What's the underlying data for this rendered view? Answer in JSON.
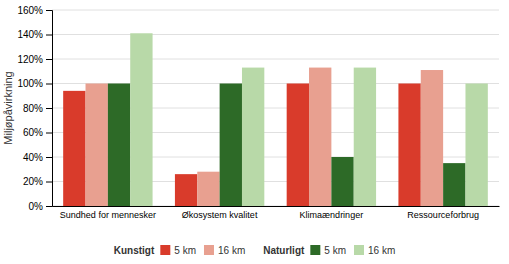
{
  "chart_data": {
    "type": "bar",
    "categories": [
      "Sundhed for mennesker",
      "Økosystem kvalitet",
      "Klimaændringer",
      "Ressourceforbrug"
    ],
    "series": [
      {
        "name": "5 km",
        "group": "Kunstigt",
        "color": "#d93b2b",
        "values": [
          94,
          26,
          100,
          100
        ]
      },
      {
        "name": "16 km",
        "group": "Kunstigt",
        "color": "#e8a090",
        "values": [
          100,
          28,
          113,
          111
        ]
      },
      {
        "name": "5 km",
        "group": "Naturligt",
        "color": "#2d6a27",
        "values": [
          100,
          100,
          40,
          35
        ]
      },
      {
        "name": "16 km",
        "group": "Naturligt",
        "color": "#b8d9a8",
        "values": [
          141,
          113,
          113,
          100
        ]
      }
    ],
    "y_label": "Miljøpåvirkning",
    "ylim": [
      0,
      160
    ],
    "yticks": [
      {
        "value": 0,
        "label": "0%"
      },
      {
        "value": 20,
        "label": "20%"
      },
      {
        "value": 40,
        "label": "40%"
      },
      {
        "value": 60,
        "label": "60%"
      },
      {
        "value": 80,
        "label": "80%"
      },
      {
        "value": 100,
        "label": "100%"
      },
      {
        "value": 120,
        "label": "120%"
      },
      {
        "value": 140,
        "label": "140%"
      },
      {
        "value": 160,
        "label": "160%"
      }
    ],
    "grid": true,
    "legend": "bottom"
  }
}
